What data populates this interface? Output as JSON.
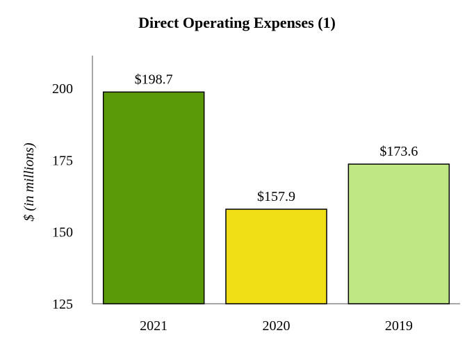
{
  "chart_data": {
    "type": "bar",
    "title": "Direct Operating Expenses (1)",
    "xlabel": "",
    "ylabel": "$ (in millions)",
    "categories": [
      "2021",
      "2020",
      "2019"
    ],
    "values": [
      198.7,
      157.9,
      173.6
    ],
    "data_labels": [
      "$198.7",
      "$157.9",
      "$173.6"
    ],
    "bar_colors": [
      "#5a9a08",
      "#efdf14",
      "#bfe784"
    ],
    "bar_border_color": "#000000",
    "ylim": [
      125,
      210
    ],
    "yticks": [
      125,
      150,
      175,
      200
    ],
    "ytick_labels": [
      "125",
      "150",
      "175",
      "200"
    ],
    "grid": false,
    "legend": "none"
  }
}
